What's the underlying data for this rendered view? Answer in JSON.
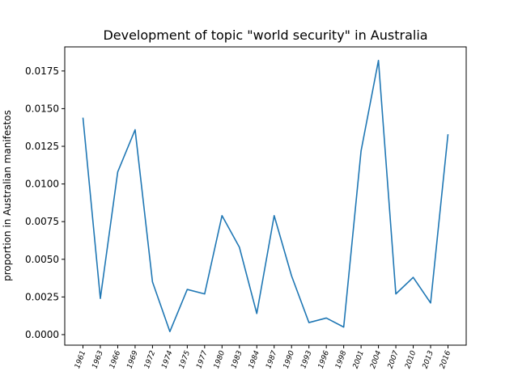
{
  "chart_data": {
    "type": "line",
    "title": "Development of topic \"world security\" in Australia",
    "xlabel": "",
    "ylabel": "proportion in Australian manifestos",
    "categories": [
      "1961",
      "1963",
      "1966",
      "1969",
      "1972",
      "1974",
      "1975",
      "1977",
      "1980",
      "1983",
      "1984",
      "1987",
      "1990",
      "1993",
      "1996",
      "1998",
      "2001",
      "2004",
      "2007",
      "2010",
      "2013",
      "2016"
    ],
    "series": [
      {
        "values": [
          0.0144,
          0.0024,
          0.0108,
          0.0136,
          0.0035,
          0.0002,
          0.003,
          0.0027,
          0.0079,
          0.0058,
          0.0014,
          0.0079,
          0.0039,
          0.0008,
          0.0011,
          0.0005,
          0.0122,
          0.0182,
          0.0027,
          0.0038,
          0.0021,
          0.0133
        ]
      }
    ],
    "yticks": [
      "0.0000",
      "0.0025",
      "0.0050",
      "0.0075",
      "0.0100",
      "0.0125",
      "0.0150",
      "0.0175"
    ],
    "ylim": [
      -0.0007,
      0.0191
    ],
    "grid": false,
    "colors": {
      "line": "#1f77b4"
    }
  }
}
